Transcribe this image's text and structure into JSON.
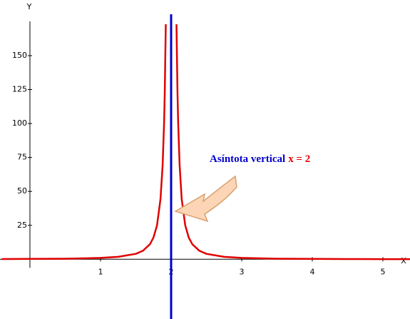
{
  "chart_data": {
    "type": "line",
    "x_label": "X",
    "y_label": "Y",
    "x": [
      -0.4,
      0,
      0.5,
      1,
      1.25,
      1.5,
      1.6,
      1.7,
      1.75,
      1.8,
      1.85,
      1.88,
      1.9,
      1.91,
      1.924,
      2,
      2.076,
      2.09,
      2.1,
      2.12,
      2.15,
      2.2,
      2.25,
      2.3,
      2.4,
      2.5,
      2.75,
      3,
      3.5,
      4,
      4.5,
      5,
      5.4
    ],
    "series": [
      {
        "color": "#e00000",
        "values": [
          0.17,
          0.25,
          0.44,
          1,
          1.78,
          4,
          6.25,
          11.11,
          16,
          25,
          44.44,
          69.44,
          100,
          123.46,
          173.13,
          null,
          173.13,
          123.46,
          100,
          69.44,
          44.44,
          25,
          16,
          11.11,
          6.25,
          4,
          1.78,
          1,
          0.44,
          0.25,
          0.16,
          0.11,
          0.09
        ]
      }
    ],
    "asymptote": {
      "x": 2,
      "color": "#0000cc"
    },
    "annotation": {
      "text": "Asíntota vertical",
      "equation": "x = 2",
      "color": "#0000cc",
      "equation_color": "#e00000"
    },
    "xlim": [
      -0.424,
      5.384
    ],
    "ylim": [
      -44,
      191
    ],
    "xticks": [
      1,
      2,
      3,
      4,
      5
    ],
    "yticks": [
      25,
      50,
      75,
      100,
      125,
      150
    ]
  }
}
